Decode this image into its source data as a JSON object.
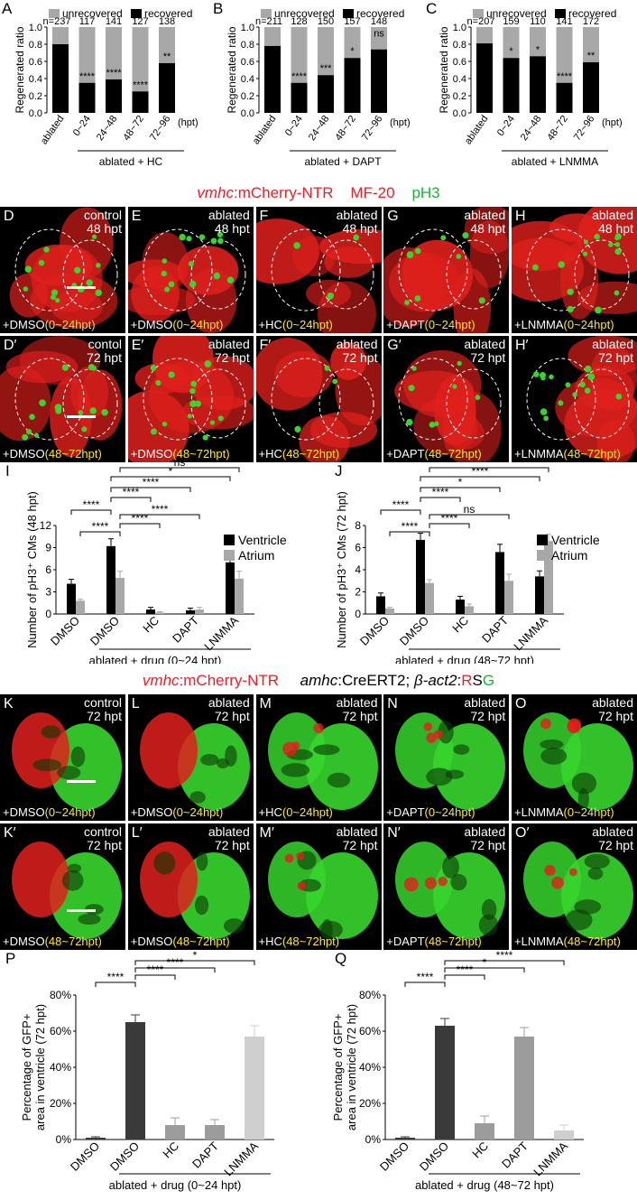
{
  "colors": {
    "unrecovered": "#a8a8a8",
    "recovered": "#000000",
    "ventricle": "#000000",
    "atrium": "#a8a8a8",
    "heart_red": "#e0201c",
    "heart_green": "#37d62e",
    "timewin": "#ffe62e"
  },
  "row1": {
    "panel_letters": [
      "A",
      "B",
      "C"
    ],
    "legend": [
      "unrecovered",
      "recovered"
    ],
    "charts": [
      {
        "letter": "A",
        "group_label": "ablated + HC"
      },
      {
        "letter": "B",
        "group_label": "ablated + DAPT"
      },
      {
        "letter": "C",
        "group_label": "ablated + LNMMA"
      }
    ],
    "hpt_label": "(hpt)"
  },
  "chart_data": [
    {
      "type": "bar",
      "panel": "A",
      "ylabel": "Regenerated ratio",
      "ylim": [
        0,
        1.0
      ],
      "yticks": [
        "0.0",
        "0.2",
        "0.4",
        "0.6",
        "0.8",
        "1.0"
      ],
      "categories": [
        "ablated",
        "0~24",
        "24~48",
        "48~72",
        "72~96"
      ],
      "series": [
        {
          "name": "recovered",
          "values": [
            0.8,
            0.35,
            0.39,
            0.25,
            0.58
          ]
        },
        {
          "name": "unrecovered",
          "values": [
            0.2,
            0.65,
            0.61,
            0.75,
            0.42
          ]
        }
      ],
      "n_labels": [
        "n=237",
        "117",
        "141",
        "127",
        "138"
      ],
      "sig": [
        "",
        "****",
        "****",
        "****",
        "**"
      ]
    },
    {
      "type": "bar",
      "panel": "B",
      "ylabel": "Regenerated ratio",
      "ylim": [
        0,
        1.0
      ],
      "yticks": [
        "0.0",
        "0.2",
        "0.4",
        "0.6",
        "0.8",
        "1.0"
      ],
      "categories": [
        "ablated",
        "0~24",
        "24~48",
        "48~72",
        "72~96"
      ],
      "series": [
        {
          "name": "recovered",
          "values": [
            0.78,
            0.35,
            0.44,
            0.64,
            0.74
          ]
        },
        {
          "name": "unrecovered",
          "values": [
            0.22,
            0.65,
            0.56,
            0.36,
            0.26
          ]
        }
      ],
      "n_labels": [
        "n=211",
        "128",
        "150",
        "157",
        "148"
      ],
      "sig": [
        "",
        "****",
        "***",
        "*",
        "ns"
      ]
    },
    {
      "type": "bar",
      "panel": "C",
      "ylabel": "Regenerated ratio",
      "ylim": [
        0,
        1.0
      ],
      "yticks": [
        "0.0",
        "0.2",
        "0.4",
        "0.6",
        "0.8",
        "1.0"
      ],
      "categories": [
        "ablated",
        "0~24",
        "24~48",
        "48~72",
        "72~96"
      ],
      "series": [
        {
          "name": "recovered",
          "values": [
            0.81,
            0.64,
            0.66,
            0.35,
            0.59
          ]
        },
        {
          "name": "unrecovered",
          "values": [
            0.19,
            0.36,
            0.34,
            0.65,
            0.41
          ]
        }
      ],
      "n_labels": [
        "n=207",
        "159",
        "110",
        "141",
        "172"
      ],
      "sig": [
        "",
        "*",
        "*",
        "****",
        "**"
      ]
    },
    {
      "type": "bar",
      "panel": "I",
      "ylabel": "Number of pH3⁺ CMs (48 hpt)",
      "ylim": [
        0,
        12
      ],
      "yticks": [
        "0",
        "3",
        "6",
        "9",
        "12"
      ],
      "categories": [
        "DMSO",
        "DMSO",
        "HC",
        "DAPT",
        "LNMMA"
      ],
      "series": [
        {
          "name": "Ventricle",
          "values": [
            4.1,
            9.2,
            0.6,
            0.5,
            7.0
          ],
          "errors": [
            0.6,
            1.0,
            0.3,
            0.3,
            1.4
          ]
        },
        {
          "name": "Atrium",
          "values": [
            1.8,
            4.9,
            0.2,
            0.6,
            4.8
          ],
          "errors": [
            0.2,
            0.9,
            0.1,
            0.3,
            1.0
          ]
        }
      ],
      "xgroup": "ablated + drug (0~24 hpt)",
      "brackets": [
        {
          "from": 0,
          "to": 1,
          "label": "****"
        },
        {
          "from": 1,
          "to": 2,
          "label": "****"
        },
        {
          "from": 1,
          "to": 3,
          "label": "****"
        },
        {
          "from": 1,
          "to": 4,
          "label": "*"
        },
        {
          "from": 0,
          "to": 1,
          "label": "****",
          "atrium": true
        },
        {
          "from": 1,
          "to": 2,
          "label": "****",
          "atrium": true
        },
        {
          "from": 1,
          "to": 3,
          "label": "****",
          "atrium": true
        },
        {
          "from": 1,
          "to": 4,
          "label": "ns",
          "atrium": true
        }
      ]
    },
    {
      "type": "bar",
      "panel": "J",
      "ylabel": "Number of pH3⁺ CMs (72 hpt)",
      "ylim": [
        0,
        8
      ],
      "yticks": [
        "0",
        "2",
        "4",
        "6",
        "8"
      ],
      "categories": [
        "DMSO",
        "DMSO",
        "HC",
        "DAPT",
        "LNMMA"
      ],
      "series": [
        {
          "name": "Ventricle",
          "values": [
            1.6,
            6.7,
            1.3,
            5.6,
            3.4
          ],
          "errors": [
            0.3,
            0.6,
            0.3,
            0.7,
            0.5
          ]
        },
        {
          "name": "Atrium",
          "values": [
            0.5,
            2.8,
            0.7,
            3.0,
            6.6
          ],
          "errors": [
            0.1,
            0.3,
            0.2,
            0.6,
            0.6
          ]
        }
      ],
      "xgroup": "ablated + drug (48~72 hpt)",
      "brackets": [
        {
          "from": 0,
          "to": 1,
          "label": "****"
        },
        {
          "from": 1,
          "to": 2,
          "label": "****"
        },
        {
          "from": 1,
          "to": 3,
          "label": "*"
        },
        {
          "from": 1,
          "to": 4,
          "label": "****"
        },
        {
          "from": 0,
          "to": 1,
          "label": "****",
          "atrium": true
        },
        {
          "from": 1,
          "to": 2,
          "label": "****",
          "atrium": true
        },
        {
          "from": 1,
          "to": 3,
          "label": "ns",
          "atrium": true
        },
        {
          "from": 1,
          "to": 4,
          "label": "****",
          "atrium": true
        }
      ]
    },
    {
      "type": "bar",
      "panel": "P",
      "ylabel": "Percentage of GFP+ area in ventricle (72 hpt)",
      "ylim": [
        0,
        80
      ],
      "yticks": [
        "0%",
        "20%",
        "40%",
        "60%",
        "80%"
      ],
      "categories": [
        "DMSO",
        "DMSO",
        "HC",
        "DAPT",
        "LNMMA"
      ],
      "values": [
        1,
        65,
        8,
        8,
        57
      ],
      "errors": [
        0.5,
        4,
        4,
        3,
        6
      ],
      "bar_colors": [
        "#3a3a3a",
        "#3a3a3a",
        "#9c9c9c",
        "#9c9c9c",
        "#cfcfcf"
      ],
      "xgroup": "ablated + drug (0~24 hpt)",
      "brackets": [
        {
          "from": 0,
          "to": 1,
          "label": "****"
        },
        {
          "from": 1,
          "to": 2,
          "label": "****"
        },
        {
          "from": 1,
          "to": 3,
          "label": "****"
        },
        {
          "from": 1,
          "to": 4,
          "label": "*"
        }
      ]
    },
    {
      "type": "bar",
      "panel": "Q",
      "ylabel": "Percentage of GFP+ area in ventricle (72 hpt)",
      "ylim": [
        0,
        80
      ],
      "yticks": [
        "0%",
        "20%",
        "40%",
        "60%",
        "80%"
      ],
      "categories": [
        "DMSO",
        "DMSO",
        "HC",
        "DAPT",
        "LNMMA"
      ],
      "values": [
        1,
        63,
        9,
        57,
        5
      ],
      "errors": [
        0.5,
        4,
        4,
        5,
        3
      ],
      "bar_colors": [
        "#3a3a3a",
        "#3a3a3a",
        "#9c9c9c",
        "#9c9c9c",
        "#cfcfcf"
      ],
      "xgroup": "ablated + drug (48~72 hpt)",
      "brackets": [
        {
          "from": 0,
          "to": 1,
          "label": "****"
        },
        {
          "from": 1,
          "to": 2,
          "label": "****"
        },
        {
          "from": 1,
          "to": 3,
          "label": "*"
        },
        {
          "from": 1,
          "to": 4,
          "label": "****"
        }
      ]
    }
  ],
  "row2": {
    "header": {
      "gene": "vmhc",
      "rest": ":mCherry-NTR",
      "mf": "MF-20",
      "ph3": "pH3"
    },
    "panels": [
      {
        "letter": "D",
        "state": "control",
        "time": "48 hpt",
        "drug": "+DMSO",
        "window": "(0~24hpt)"
      },
      {
        "letter": "E",
        "state": "ablated",
        "time": "48 hpt",
        "drug": "+DMSO",
        "window": "(0~24hpt)"
      },
      {
        "letter": "F",
        "state": "ablated",
        "time": "48 hpt",
        "drug": "+HC",
        "window": "(0~24hpt)"
      },
      {
        "letter": "G",
        "state": "ablated",
        "time": "48 hpt",
        "drug": "+DAPT",
        "window": "(0~24hpt)"
      },
      {
        "letter": "H",
        "state": "ablated",
        "time": "48 hpt",
        "drug": "+LNMMA",
        "window": "(0~24hpt)"
      },
      {
        "letter": "D′",
        "state": "contol",
        "time": "72 hpt",
        "drug": "+DMSO",
        "window": "(48~72hpt)"
      },
      {
        "letter": "E′",
        "state": "ablated",
        "time": "72 hpt",
        "drug": "+DMSO",
        "window": "(48~72hpt)"
      },
      {
        "letter": "F′",
        "state": "ablated",
        "time": "72 hpt",
        "drug": "+HC",
        "window": "(48~72hpt)"
      },
      {
        "letter": "G′",
        "state": "ablated",
        "time": "72 hpt",
        "drug": "+DAPT",
        "window": "(48~72hpt)"
      },
      {
        "letter": "H′",
        "state": "ablated",
        "time": "72 hpt",
        "drug": "+LNMMA",
        "window": "(48~72hpt)"
      }
    ]
  },
  "row3": {
    "letters": [
      "I",
      "J"
    ],
    "legend": [
      "Ventricle",
      "Atrium"
    ]
  },
  "row4": {
    "header": {
      "gene": "vmhc",
      "rest": ":mCherry-NTR",
      "amhc": "amhc",
      "cre": ":CreERT2;",
      "bact": "β-act2",
      "colon": ":",
      "r": "R",
      "s": "S",
      "g": "G"
    },
    "panels": [
      {
        "letter": "K",
        "state": "control",
        "time": "72 hpt",
        "drug": "+DMSO",
        "window": "(0~24hpt)"
      },
      {
        "letter": "L",
        "state": "ablated",
        "time": "72 hpt",
        "drug": "+DMSO",
        "window": "(0~24hpt)"
      },
      {
        "letter": "M",
        "state": "ablated",
        "time": "72 hpt",
        "drug": "+HC",
        "window": "(0~24hpt)"
      },
      {
        "letter": "N",
        "state": "ablated",
        "time": "72 hpt",
        "drug": "+DAPT",
        "window": "(0~24hpt)"
      },
      {
        "letter": "O",
        "state": "ablated",
        "time": "72 hpt",
        "drug": "+LNMMA",
        "window": "(0~24hpt)"
      },
      {
        "letter": "K′",
        "state": "control",
        "time": "72 hpt",
        "drug": "+DMSO",
        "window": "(48~72hpt)"
      },
      {
        "letter": "L′",
        "state": "ablated",
        "time": "72 hpt",
        "drug": "+DMSO",
        "window": "(48~72hpt)"
      },
      {
        "letter": "M′",
        "state": "ablated",
        "time": "72 hpt",
        "drug": "+HC",
        "window": "(48~72hpt)"
      },
      {
        "letter": "N′",
        "state": "ablated",
        "time": "72 hpt",
        "drug": "+DAPT",
        "window": "(48~72hpt)"
      },
      {
        "letter": "O′",
        "state": "ablated",
        "time": "72 hpt",
        "drug": "+LNMMA",
        "window": "(48~72hpt)"
      }
    ]
  },
  "row5": {
    "letters": [
      "P",
      "Q"
    ]
  }
}
